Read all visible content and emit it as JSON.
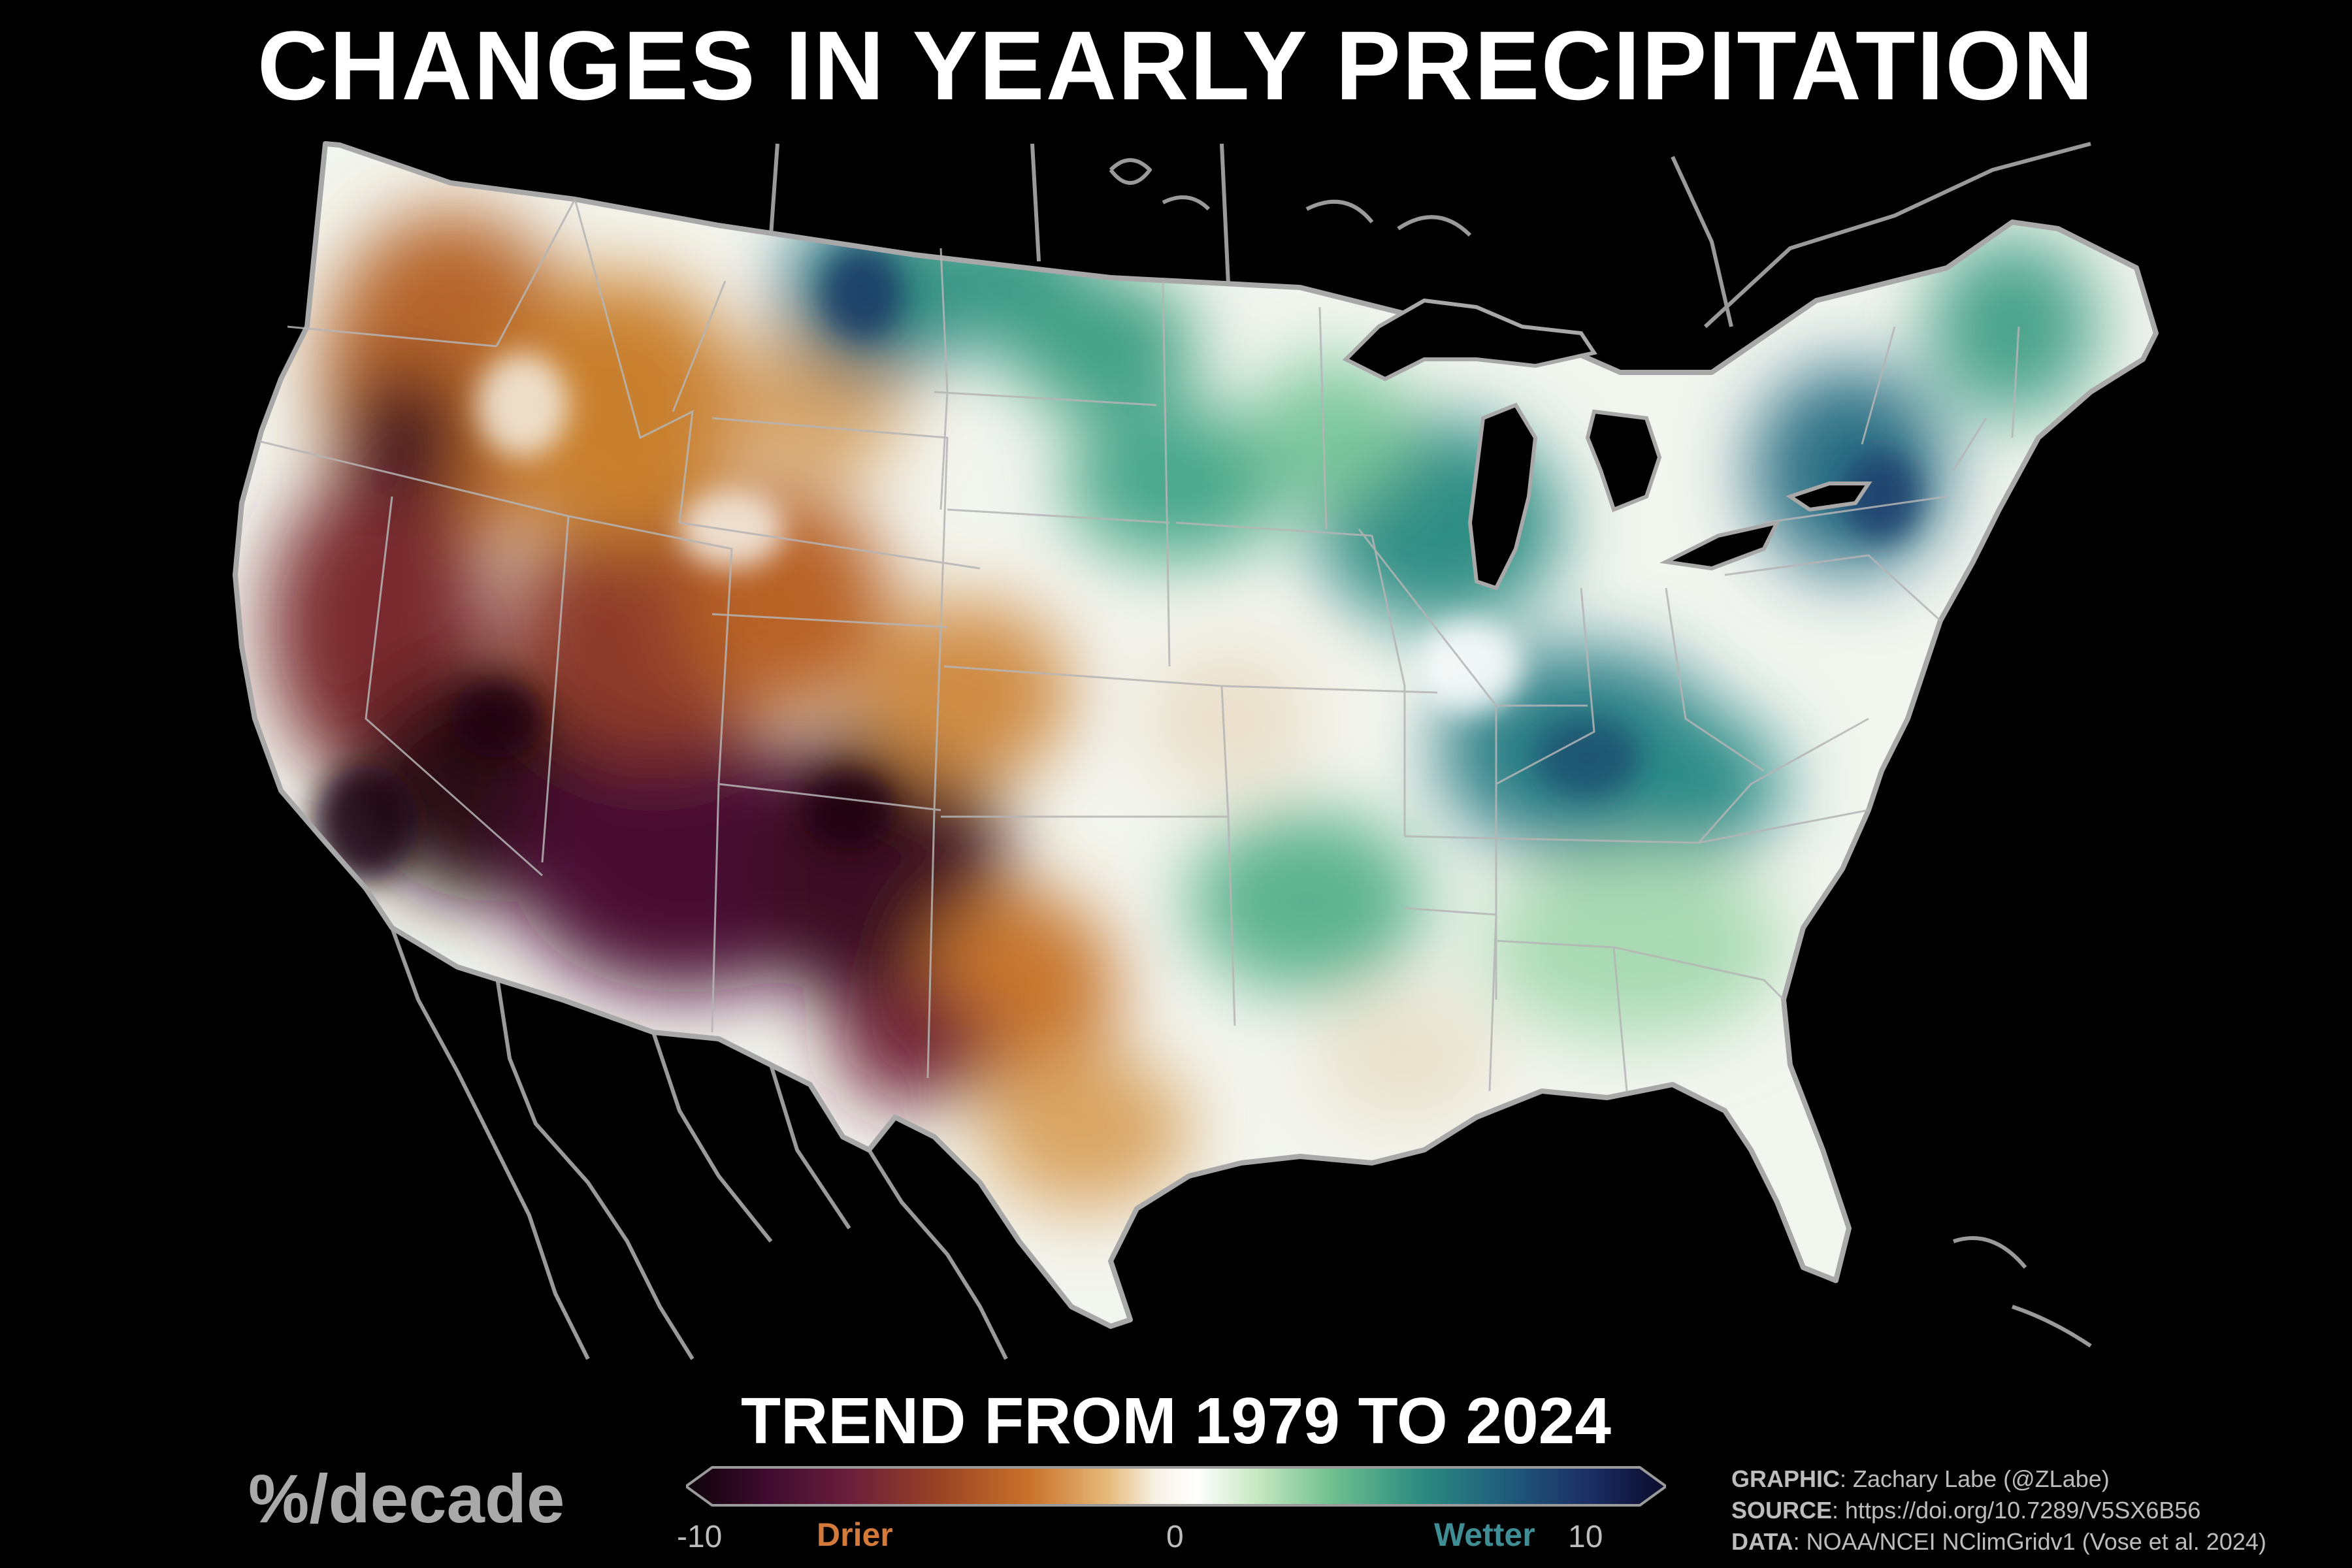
{
  "title": "CHANGES IN YEARLY PRECIPITATION",
  "subtitle": "TREND FROM 1979 TO 2024",
  "units": "%/decade",
  "colorbar": {
    "min_label": "-10",
    "mid_label": "0",
    "max_label": "10",
    "drier_label": "Drier",
    "wetter_label": "Wetter",
    "range": [
      -10,
      10
    ],
    "stops": [
      "#0d0208",
      "#3d0b2e",
      "#6b1f3a",
      "#9a4424",
      "#c9722a",
      "#e6b97a",
      "#f7f2e6",
      "#ffffff",
      "#c9e9c4",
      "#6fbf8f",
      "#2b8b80",
      "#1f5a7a",
      "#1c2f66",
      "#0a0a2a"
    ]
  },
  "credits": {
    "graphic_label": "GRAPHIC",
    "graphic_value": ": Zachary Labe (@ZLabe)",
    "source_label": "SOURCE",
    "source_value": ": https://doi.org/10.7289/V5SX6B56",
    "data_label": "DATA",
    "data_value": ": NOAA/NCEI NClimGridv1 (Vose et al. 2024)"
  },
  "colors": {
    "background": "#000000",
    "state_borders": "#b5b5b5",
    "water": "#000000",
    "drier_text": "#d37a3a",
    "wetter_text": "#3f8d95"
  },
  "map": {
    "region": "Contiguous United States",
    "field": "Trend in yearly precipitation (%/decade), 1979-2024",
    "patterns": [
      {
        "region": "Southwest and California",
        "tendency": "strongly drier"
      },
      {
        "region": "Great Basin and Intermountain West",
        "tendency": "drier"
      },
      {
        "region": "West Texas and New Mexico",
        "tendency": "strongly drier"
      },
      {
        "region": "Northern Plains (Montana, Dakotas)",
        "tendency": "wetter"
      },
      {
        "region": "Upper Midwest and Great Lakes",
        "tendency": "wetter"
      },
      {
        "region": "Ohio Valley and Kentucky/Tennessee",
        "tendency": "wetter"
      },
      {
        "region": "Northeast and New England",
        "tendency": "wetter"
      },
      {
        "region": "Southeast and Gulf Coast",
        "tendency": "near zero to slightly wetter"
      }
    ]
  }
}
